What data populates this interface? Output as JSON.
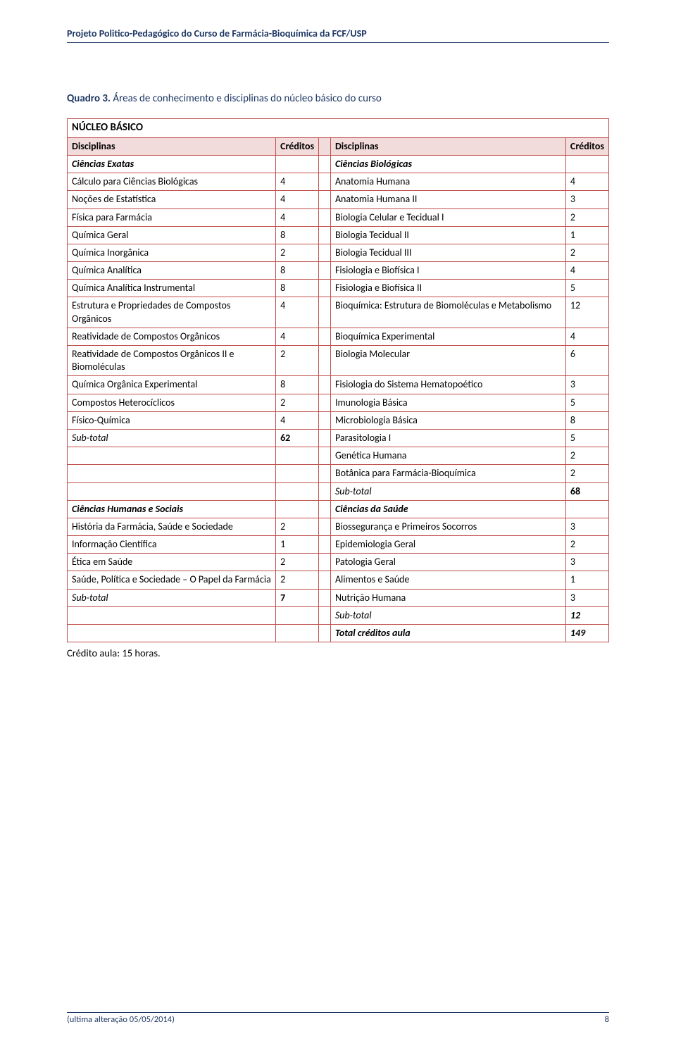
{
  "header": {
    "text": "Projeto Politico-Pedagógico do Curso de Farmácia-Bioquímica da FCF/USP"
  },
  "title": {
    "prefix": "Quadro 3.",
    "rest": "  Áreas de conhecimento e disciplinas do núcleo básico do curso"
  },
  "table": {
    "nucleo_label": "NÚCLEO BÁSICO",
    "col_disciplinas": "Disciplinas",
    "col_creditos": "Créditos",
    "section_exatas": "Ciências Exatas",
    "section_biologicas": "Ciências Biológicas",
    "section_humanas": "Ciências Humanas e Sociais",
    "section_saude": "Ciências da Saúde",
    "subtotal_label": "Sub-total",
    "total_label": "Total créditos aula",
    "total_value": "149",
    "rows_block1": [
      {
        "l": "Cálculo para Ciências Biológicas",
        "lc": "4",
        "r": "Anatomia Humana",
        "rc": "4"
      },
      {
        "l": "Noções de Estatística",
        "lc": "4",
        "r": "Anatomia Humana II",
        "rc": "3"
      },
      {
        "l": "Física para Farmácia",
        "lc": "4",
        "r": "Biologia Celular e Tecidual I",
        "rc": "2"
      },
      {
        "l": "Química Geral",
        "lc": "8",
        "r": "Biologia Tecidual II",
        "rc": "1"
      },
      {
        "l": "Química Inorgânica",
        "lc": "2",
        "r": "Biologia Tecidual III",
        "rc": "2"
      },
      {
        "l": "Química Analítica",
        "lc": "8",
        "r": "Fisiologia e Biofísica I",
        "rc": "4"
      },
      {
        "l": "Química Analítica Instrumental",
        "lc": "8",
        "r": "Fisiologia e Biofísica II",
        "rc": "5"
      },
      {
        "l": "Estrutura e Propriedades de Compostos Orgânicos",
        "lc": "4",
        "r": "Bioquímica: Estrutura de Biomoléculas e Metabolismo",
        "rc": "12"
      },
      {
        "l": "Reatividade de Compostos Orgânicos",
        "lc": "4",
        "r": "Bioquímica Experimental",
        "rc": "4"
      },
      {
        "l": "Reatividade de Compostos Orgânicos II e Biomoléculas",
        "lc": "2",
        "r": "Biologia Molecular",
        "rc": "6"
      },
      {
        "l": "Química Orgânica Experimental",
        "lc": "8",
        "r": "Fisiologia do Sistema Hematopoético",
        "rc": "3"
      },
      {
        "l": "Compostos Heterocíclicos",
        "lc": "2",
        "r": "Imunologia Básica",
        "rc": "5"
      },
      {
        "l": "Físico-Química",
        "lc": "4",
        "r": "Microbiologia Básica",
        "rc": "8"
      }
    ],
    "subtotal_exatas": "62",
    "right_only_after_subtotal": [
      {
        "r": "Parasitologia I",
        "rc": "5"
      },
      {
        "r": "Genética Humana",
        "rc": "2"
      },
      {
        "r": "Botânica para Farmácia-Bioquímica",
        "rc": "2"
      }
    ],
    "subtotal_biologicas": "68",
    "rows_block2": [
      {
        "l": "História da Farmácia, Saúde e Sociedade",
        "lc": "2",
        "r": "Biossegurança e Primeiros Socorros",
        "rc": "3"
      },
      {
        "l": "Informação Científica",
        "lc": "1",
        "r": "Epidemiologia Geral",
        "rc": "2"
      },
      {
        "l": "Ética em Saúde",
        "lc": "2",
        "r": "Patologia Geral",
        "rc": "3"
      },
      {
        "l": "Saúde, Política e Sociedade – O Papel da Farmácia",
        "lc": "2",
        "r": "Alimentos e Saúde",
        "rc": "1"
      }
    ],
    "subtotal_humanas": "7",
    "nutricao": {
      "r": "Nutrição Humana",
      "rc": "3"
    },
    "subtotal_saude": "12"
  },
  "footnote": "Crédito aula: 15 horas.",
  "footer": {
    "text": "(ultima alteração 05/05/2014)",
    "page": "8"
  },
  "colors": {
    "border": "#c0504d",
    "header_bg": "#f2dcdb",
    "doc_accent": "#1f3864"
  }
}
